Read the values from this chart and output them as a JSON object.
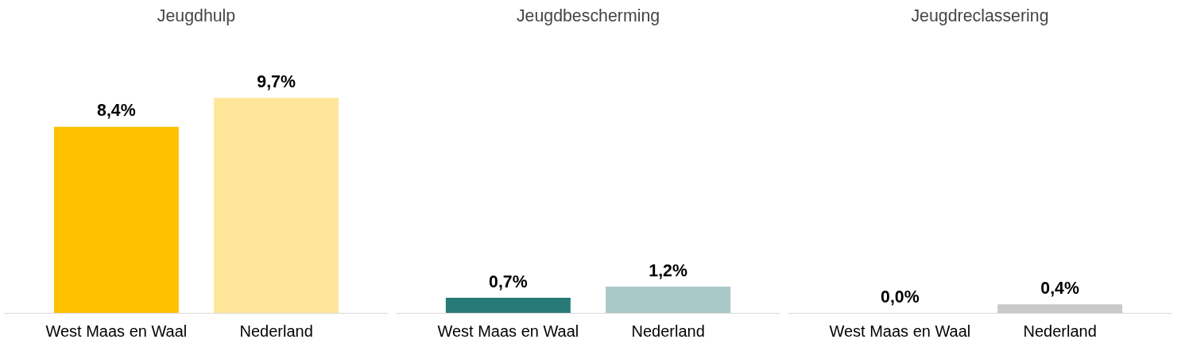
{
  "chart_data": [
    {
      "type": "bar",
      "title": "Jeugdhulp",
      "categories": [
        "West Maas en Waal",
        "Nederland"
      ],
      "values": [
        8.4,
        9.7
      ],
      "colors": [
        "#ffc000",
        "#ffe699"
      ],
      "value_labels": [
        "8,4%",
        "9,7%"
      ],
      "grid": false,
      "legend": false
    },
    {
      "type": "bar",
      "title": "Jeugdbescherming",
      "categories": [
        "West Maas en Waal",
        "Nederland"
      ],
      "values": [
        0.7,
        1.2
      ],
      "colors": [
        "#277a78",
        "#a9c8c8"
      ],
      "value_labels": [
        "0,7%",
        "1,2%"
      ],
      "grid": false,
      "legend": false
    },
    {
      "type": "bar",
      "title": "Jeugdreclassering",
      "categories": [
        "West Maas en Waal",
        "Nederland"
      ],
      "values": [
        0.0,
        0.4
      ],
      "colors": [
        "#7f7f7f",
        "#c9c9c9"
      ],
      "value_labels": [
        "0,0%",
        "0,4%"
      ],
      "grid": false,
      "legend": false
    }
  ]
}
